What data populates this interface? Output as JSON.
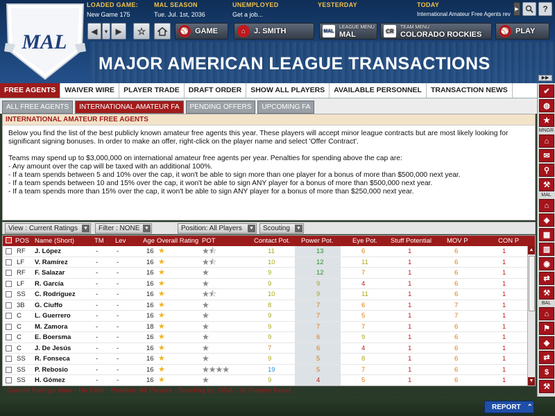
{
  "header": {
    "loaded_game": {
      "label": "LOADED GAME:",
      "value": "New Game 175"
    },
    "season": {
      "label": "MAL SEASON",
      "value": "Tue. Jul. 1st, 2036"
    },
    "employment": {
      "label": "UNEMPLOYED",
      "value": "Get a job..."
    },
    "yesterday": {
      "label": "YESTERDAY",
      "value": ""
    },
    "today": {
      "label": "TODAY",
      "value": "International Amateur Free Agents revealed"
    },
    "logo_text": "MAL",
    "title": "MAJOR AMERICAN LEAGUE TRANSACTIONS"
  },
  "nav": {
    "game": "GAME",
    "manager": "J. SMITH",
    "league_menu_label": "LEAGUE MENU",
    "league_menu_value": "MAL",
    "team_menu_label": "TEAM MENU",
    "team_menu_value": "COLORADO ROCKIES",
    "play": "PLAY"
  },
  "tabs": [
    "FREE AGENTS",
    "WAIVER WIRE",
    "PLAYER TRADE",
    "DRAFT ORDER",
    "SHOW ALL PLAYERS",
    "AVAILABLE PERSONNEL",
    "TRANSACTION NEWS"
  ],
  "subtabs": [
    "ALL FREE AGENTS",
    "INTERNATIONAL AMATEUR FA",
    "PENDING OFFERS",
    "UPCOMING FA"
  ],
  "panel": {
    "heading": "INTERNATIONAL AMATEUR FREE AGENTS",
    "intro": "Below you find the list of the best publicly known amateur free agents this year. These players will accept minor league contracts but are most likely looking for significant signing bonuses. In order to make an offer, right-click on the player name and select 'Offer Contract'.",
    "cap": "Teams may spend up to $3,000,000 on international amateur free agents per year. Penalties for spending above the cap are:",
    "rules": [
      "- Any amount over the cap will be taxed with an additional 100%.",
      "- If a team spends between 5 and 10% over the cap, it won't be able to sign more than one player for a bonus of more than $500,000 next year.",
      "- If a team spends between 10 and 15% over the cap, it won't be able to sign ANY player for a bonus of more than $500,000 next year.",
      "- If a team spends more than 15% over the cap, it won't be able to sign ANY player for a bonus of more than $250,000 next year."
    ]
  },
  "filters": {
    "view": "View : Current Ratings",
    "filter": "Filter : NONE",
    "position": "Position: All Players",
    "scouting": "Scouting"
  },
  "columns": [
    "POS",
    "Name (Short)",
    "TM",
    "Lev",
    "Age",
    "Overall Rating",
    "POT",
    "Contact Pot.",
    "Power Pot.",
    "Eye Pot.",
    "Stuff Potential",
    "MOV P",
    "CON P"
  ],
  "rows": [
    {
      "pos": "RF",
      "name": "J. López",
      "tm": "-",
      "lev": "-",
      "age": "16",
      "pot_stars": 1.5,
      "contact": "11",
      "power": "13",
      "eye": "6",
      "stuff": "1",
      "mov": "6",
      "con": "1"
    },
    {
      "pos": "LF",
      "name": "V. Ramírez",
      "tm": "-",
      "lev": "-",
      "age": "16",
      "pot_stars": 1.5,
      "contact": "10",
      "power": "12",
      "eye": "11",
      "stuff": "1",
      "mov": "6",
      "con": "1"
    },
    {
      "pos": "RF",
      "name": "F. Salazar",
      "tm": "-",
      "lev": "-",
      "age": "16",
      "pot_stars": 1,
      "contact": "9",
      "power": "12",
      "eye": "7",
      "stuff": "1",
      "mov": "6",
      "con": "1"
    },
    {
      "pos": "LF",
      "name": "R. García",
      "tm": "-",
      "lev": "-",
      "age": "16",
      "pot_stars": 1,
      "contact": "9",
      "power": "9",
      "eye": "4",
      "stuff": "1",
      "mov": "6",
      "con": "1"
    },
    {
      "pos": "SS",
      "name": "C. Rodríguez",
      "tm": "-",
      "lev": "-",
      "age": "16",
      "pot_stars": 1.5,
      "contact": "10",
      "power": "9",
      "eye": "11",
      "stuff": "1",
      "mov": "6",
      "con": "1"
    },
    {
      "pos": "3B",
      "name": "G. Ciuffo",
      "tm": "-",
      "lev": "-",
      "age": "16",
      "pot_stars": 1,
      "contact": "8",
      "power": "7",
      "eye": "6",
      "stuff": "1",
      "mov": "7",
      "con": "1"
    },
    {
      "pos": "C",
      "name": "L. Guerrero",
      "tm": "-",
      "lev": "-",
      "age": "16",
      "pot_stars": 1,
      "contact": "9",
      "power": "7",
      "eye": "5",
      "stuff": "1",
      "mov": "7",
      "con": "1"
    },
    {
      "pos": "C",
      "name": "M. Zamora",
      "tm": "-",
      "lev": "-",
      "age": "18",
      "pot_stars": 1,
      "contact": "9",
      "power": "7",
      "eye": "7",
      "stuff": "1",
      "mov": "6",
      "con": "1"
    },
    {
      "pos": "C",
      "name": "E. Boersma",
      "tm": "-",
      "lev": "-",
      "age": "16",
      "pot_stars": 1,
      "contact": "9",
      "power": "6",
      "eye": "9",
      "stuff": "1",
      "mov": "6",
      "con": "1"
    },
    {
      "pos": "C",
      "name": "J. De Jesús",
      "tm": "-",
      "lev": "-",
      "age": "16",
      "pot_stars": 1,
      "contact": "7",
      "power": "6",
      "eye": "4",
      "stuff": "1",
      "mov": "6",
      "con": "1"
    },
    {
      "pos": "SS",
      "name": "R. Fonseca",
      "tm": "-",
      "lev": "-",
      "age": "16",
      "pot_stars": 1,
      "contact": "9",
      "power": "5",
      "eye": "8",
      "stuff": "1",
      "mov": "6",
      "con": "1"
    },
    {
      "pos": "SS",
      "name": "P. Rebosio",
      "tm": "-",
      "lev": "-",
      "age": "16",
      "pot_stars": 4,
      "contact": "19",
      "power": "5",
      "eye": "7",
      "stuff": "1",
      "mov": "6",
      "con": "1"
    },
    {
      "pos": "SS",
      "name": "H. Gómez",
      "tm": "-",
      "lev": "-",
      "age": "16",
      "pot_stars": 1,
      "contact": "9",
      "power": "4",
      "eye": "5",
      "stuff": "1",
      "mov": "6",
      "con": "1"
    }
  ],
  "footer_status": "Current Ratings View - No Filter - Position: All Players - Scouting by: OSA - 30 Players found",
  "report_button": "REPORT",
  "sidebar_labels": {
    "mngr": "MNGR",
    "mal": "MAL",
    "bal": "BAL"
  },
  "colors": {
    "accent_red": "#9e1a1a",
    "rating_green": "#2e8b2e",
    "rating_olive": "#a8a81a",
    "rating_orange": "#e07810",
    "rating_red": "#c41a1a",
    "rating_blue": "#2a8fd0",
    "star_gold": "#f2b21c"
  }
}
